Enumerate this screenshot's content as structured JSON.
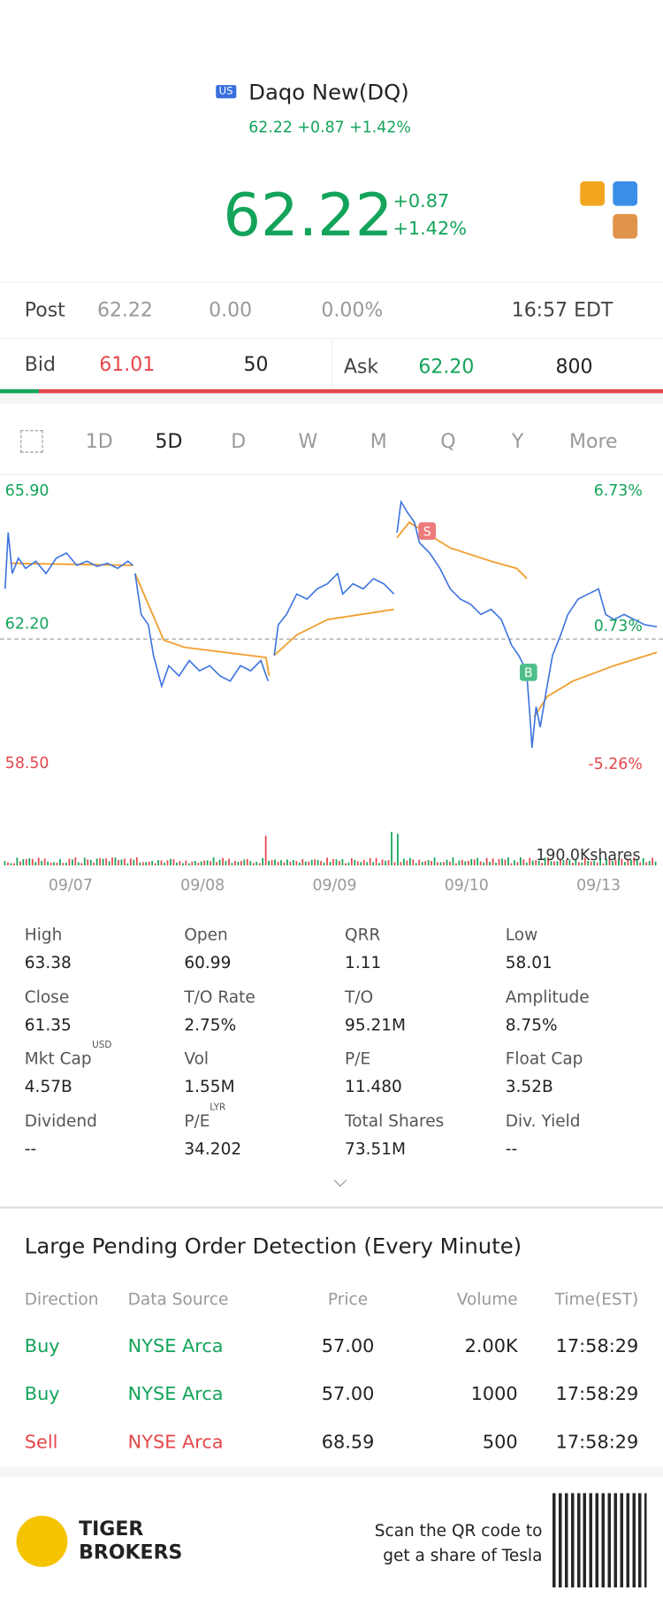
{
  "header": {
    "market": "US",
    "name": "Daqo New(DQ)",
    "subline": "62.22 +0.87 +1.42%",
    "price": "62.22",
    "change": "+0.87",
    "change_pct": "+1.42%"
  },
  "post": {
    "label": "Post",
    "price": "62.22",
    "change": "0.00",
    "change_pct": "0.00%",
    "time": "16:57 EDT"
  },
  "quote": {
    "bid_label": "Bid",
    "bid": "61.01",
    "bid_size": "50",
    "ask_label": "Ask",
    "ask": "62.20",
    "ask_size": "800"
  },
  "tabs": [
    "1D",
    "5D",
    "D",
    "W",
    "M",
    "Q",
    "Y",
    "More"
  ],
  "chart": {
    "high": "65.90",
    "mid": "62.20",
    "low": "58.50",
    "high_pct": "6.73%",
    "mid_pct": "0.73%",
    "low_pct": "-5.26%",
    "sell_marker": "S",
    "buy_marker": "B",
    "volume": "190.0Kshares",
    "dates": [
      "09/07",
      "09/08",
      "09/09",
      "09/10",
      "09/13"
    ]
  },
  "stats": [
    {
      "label": "High",
      "value": "63.38"
    },
    {
      "label": "Open",
      "value": "60.99"
    },
    {
      "label": "QRR",
      "value": "1.11"
    },
    {
      "label": "Low",
      "value": "58.01"
    },
    {
      "label": "Close",
      "value": "61.35"
    },
    {
      "label": "T/O Rate",
      "value": "2.75%"
    },
    {
      "label": "T/O",
      "value": "95.21M"
    },
    {
      "label": "Amplitude",
      "value": "8.75%"
    },
    {
      "label": "Mkt Cap",
      "sup": "USD",
      "value": "4.57B"
    },
    {
      "label": "Vol",
      "value": "1.55M"
    },
    {
      "label": "P/E",
      "value": "11.480"
    },
    {
      "label": "Float Cap",
      "value": "3.52B"
    },
    {
      "label": "Dividend",
      "value": "--"
    },
    {
      "label": "P/E",
      "sup": "LYR",
      "value": "34.202"
    },
    {
      "label": "Total Shares",
      "value": "73.51M"
    },
    {
      "label": "Div. Yield",
      "value": "--"
    }
  ],
  "orders": {
    "title": "Large Pending Order Detection (Every Minute)",
    "columns": [
      "Direction",
      "Data Source",
      "Price",
      "Volume",
      "Time(EST)"
    ],
    "rows": [
      [
        "Buy",
        "NYSE Arca",
        "57.00",
        "2.00K",
        "17:58:29"
      ],
      [
        "Buy",
        "NYSE Arca",
        "57.00",
        "1000",
        "17:58:29"
      ],
      [
        "Sell",
        "NYSE Arca",
        "68.59",
        "500",
        "17:58:29"
      ]
    ]
  },
  "footer": {
    "brand_line1": "TIGER",
    "brand_line2": "BROKERS",
    "cta_line1": "Scan the QR code to",
    "cta_line2": "get a share of Tesla"
  }
}
